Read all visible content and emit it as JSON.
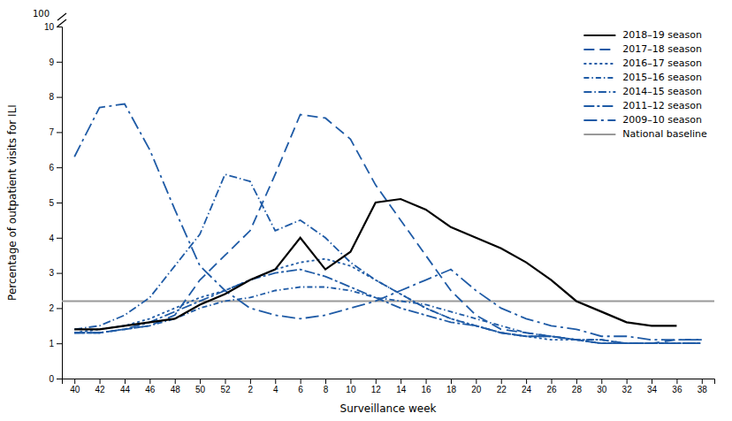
{
  "chart_data": {
    "type": "line",
    "x_label": "Surveillance week",
    "y_label": "Percentage of outpatient visits for ILI",
    "categories": [
      "40",
      "42",
      "44",
      "46",
      "48",
      "50",
      "52",
      "2",
      "4",
      "6",
      "8",
      "10",
      "12",
      "14",
      "16",
      "18",
      "20",
      "22",
      "24",
      "26",
      "28",
      "30",
      "32",
      "34",
      "36",
      "38"
    ],
    "series": [
      {
        "name": "2018–19 season",
        "color": "#000000",
        "line_style": "solid",
        "values": [
          1.4,
          1.4,
          1.5,
          1.6,
          1.7,
          2.1,
          2.4,
          2.8,
          3.1,
          4.0,
          3.1,
          3.6,
          5.0,
          5.1,
          4.8,
          4.3,
          4.0,
          3.7,
          3.3,
          2.8,
          2.2,
          1.9,
          1.6,
          1.5,
          1.5,
          null
        ]
      },
      {
        "name": "2017–18 season",
        "color": "#1F5BA6",
        "line_style": "dashed",
        "values": [
          1.3,
          1.3,
          1.4,
          1.5,
          1.8,
          2.8,
          3.5,
          4.2,
          5.8,
          7.5,
          7.4,
          6.8,
          5.5,
          4.5,
          3.5,
          2.5,
          1.8,
          1.4,
          1.3,
          1.2,
          1.1,
          1.0,
          1.0,
          1.0,
          1.1,
          1.1
        ]
      },
      {
        "name": "2016–17 season",
        "color": "#1F5BA6",
        "line_style": "dotted",
        "values": [
          1.3,
          1.4,
          1.5,
          1.7,
          2.0,
          2.3,
          2.5,
          2.8,
          3.1,
          3.3,
          3.4,
          3.2,
          2.8,
          2.4,
          2.0,
          1.7,
          1.5,
          1.3,
          1.2,
          1.1,
          1.1,
          1.0,
          1.0,
          1.0,
          1.0,
          1.0
        ]
      },
      {
        "name": "2015–16 season",
        "color": "#1F5BA6",
        "line_style": "dashdot",
        "values": [
          1.3,
          1.3,
          1.4,
          1.5,
          1.7,
          2.0,
          2.2,
          2.3,
          2.5,
          2.6,
          2.6,
          2.5,
          2.3,
          2.2,
          2.1,
          1.9,
          1.7,
          1.5,
          1.3,
          1.2,
          1.1,
          1.1,
          1.0,
          1.0,
          1.0,
          1.0
        ]
      },
      {
        "name": "2014–15 season",
        "color": "#1F5BA6",
        "line_style": "longdashdot",
        "values": [
          1.4,
          1.5,
          1.8,
          2.3,
          3.2,
          4.1,
          5.8,
          5.6,
          4.2,
          4.5,
          4.0,
          3.3,
          2.8,
          2.4,
          2.0,
          1.7,
          1.5,
          1.3,
          1.2,
          1.2,
          1.1,
          1.1,
          1.0,
          1.0,
          1.0,
          1.0
        ]
      },
      {
        "name": "2011–12 season",
        "color": "#1F5BA6",
        "line_style": "longdashdash",
        "values": [
          1.3,
          1.3,
          1.4,
          1.6,
          1.9,
          2.2,
          2.5,
          2.8,
          3.0,
          3.1,
          2.9,
          2.6,
          2.3,
          2.0,
          1.8,
          1.6,
          1.5,
          1.3,
          1.2,
          1.2,
          1.1,
          1.0,
          1.0,
          1.0,
          1.0,
          1.0
        ]
      },
      {
        "name": "2009–10 season",
        "color": "#1F5BA6",
        "line_style": "widedashdot",
        "values": [
          6.3,
          7.7,
          7.8,
          6.5,
          4.8,
          3.2,
          2.5,
          2.0,
          1.8,
          1.7,
          1.8,
          2.0,
          2.2,
          2.5,
          2.8,
          3.1,
          2.5,
          2.0,
          1.7,
          1.5,
          1.4,
          1.2,
          1.2,
          1.1,
          1.1,
          1.1
        ]
      }
    ],
    "baseline": {
      "label": "National baseline",
      "value": 2.2,
      "color": "#999999"
    },
    "annotations": [
      {
        "text": "100"
      }
    ],
    "ylim": [
      0,
      10
    ],
    "yticks": [
      0,
      1,
      2,
      3,
      4,
      5,
      6,
      7,
      8,
      9,
      10
    ],
    "grid": false,
    "legend": "upper right"
  }
}
